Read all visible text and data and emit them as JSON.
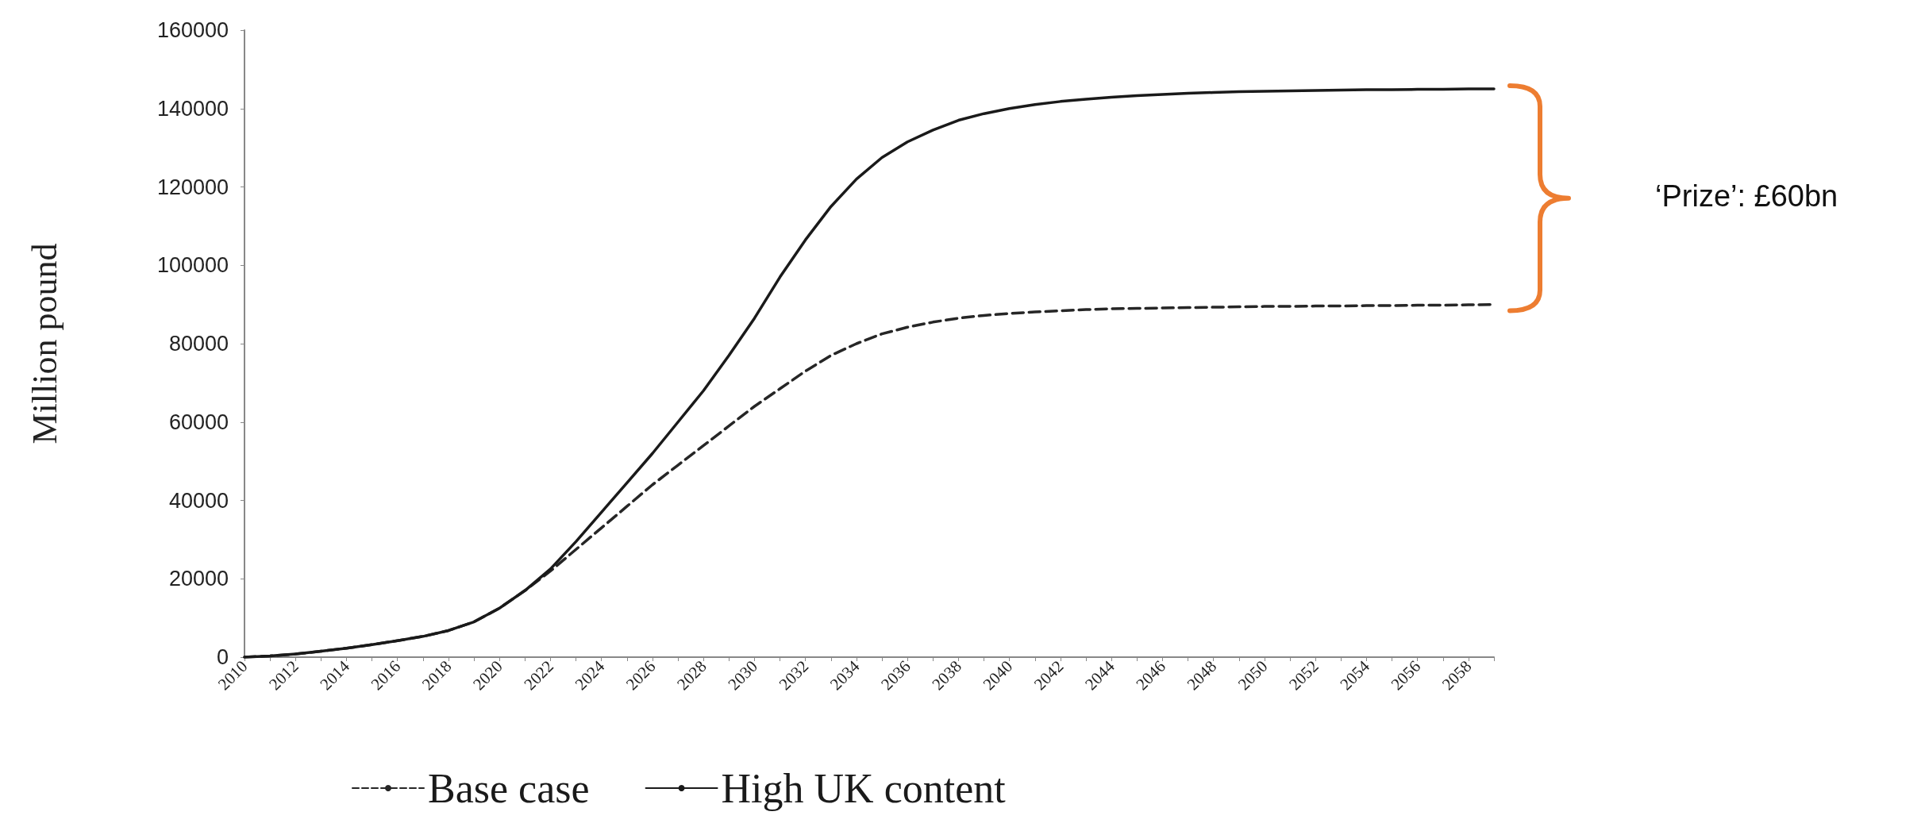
{
  "chart_data": {
    "type": "line",
    "ylabel": "Million pound",
    "categories": [
      "2010",
      null,
      "2012",
      null,
      "2014",
      null,
      "2016",
      null,
      "2018",
      null,
      "2020",
      null,
      "2022",
      null,
      "2024",
      null,
      "2026",
      null,
      "2028",
      null,
      "2030",
      null,
      "2032",
      null,
      "2034",
      null,
      "2036",
      null,
      "2038",
      null,
      "2040",
      null,
      "2042",
      null,
      "2044",
      null,
      "2046",
      null,
      "2048",
      null,
      "2050",
      null,
      "2052",
      null,
      "2054",
      null,
      "2056",
      null,
      "2058",
      null
    ],
    "series": [
      {
        "name": "Base case",
        "color": "#262626",
        "line_style": "dashed",
        "values": [
          0,
          300,
          800,
          1500,
          2300,
          3200,
          4200,
          5300,
          6800,
          9000,
          12500,
          17000,
          22000,
          27500,
          33000,
          38500,
          44000,
          49000,
          54000,
          59000,
          64000,
          68500,
          73000,
          77000,
          80000,
          82500,
          84200,
          85500,
          86500,
          87200,
          87700,
          88100,
          88400,
          88700,
          88900,
          89000,
          89100,
          89200,
          89300,
          89400,
          89500,
          89500,
          89600,
          89600,
          89700,
          89700,
          89800,
          89800,
          89900,
          90000
        ]
      },
      {
        "name": "High UK content",
        "color": "#1a1a1a",
        "line_style": "solid",
        "values": [
          0,
          300,
          800,
          1500,
          2300,
          3200,
          4200,
          5300,
          6800,
          9000,
          12500,
          17000,
          22500,
          29500,
          37000,
          44500,
          52000,
          60000,
          68000,
          77000,
          86500,
          97000,
          106500,
          115000,
          122000,
          127500,
          131500,
          134500,
          137000,
          138700,
          140000,
          141000,
          141800,
          142400,
          142900,
          143300,
          143600,
          143900,
          144100,
          144300,
          144400,
          144500,
          144600,
          144700,
          144800,
          144800,
          144900,
          144900,
          145000,
          145000
        ]
      }
    ],
    "ylim": [
      0,
      160000
    ],
    "yticks": [
      0,
      20000,
      40000,
      60000,
      80000,
      100000,
      120000,
      140000,
      160000
    ],
    "grid": false,
    "legend": "bottom",
    "marker": "none",
    "annotations": [
      "‘Prize’: £60bn"
    ]
  }
}
